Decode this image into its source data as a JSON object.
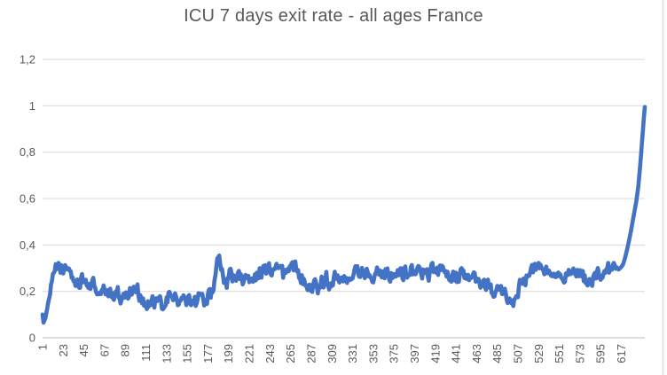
{
  "window": {
    "background": "#ffffff",
    "right_edge_color": "#d9d9d9"
  },
  "chart_data": {
    "type": "line",
    "title": "ICU 7 days exit rate - all ages France",
    "xlabel": "",
    "ylabel": "",
    "ylim": [
      0,
      1.2
    ],
    "x_range": [
      1,
      642
    ],
    "n_points": 642,
    "grid": "horizontal",
    "legend": "none",
    "decimal_separator": ",",
    "colors": {
      "series": "#4472C4",
      "grid": "#d9d9d9",
      "axis": "#bfbfbf",
      "labels": "#595959",
      "title": "#595959"
    },
    "y_ticks": [
      {
        "label": "0",
        "value": 0
      },
      {
        "label": "0,2",
        "value": 0.2
      },
      {
        "label": "0,4",
        "value": 0.4
      },
      {
        "label": "0,6",
        "value": 0.6
      },
      {
        "label": "0,8",
        "value": 0.8
      },
      {
        "label": "1",
        "value": 1
      },
      {
        "label": "1,2",
        "value": 1.2
      }
    ],
    "x_tick_step": 22,
    "x_tick_values": [
      1,
      23,
      45,
      67,
      89,
      111,
      133,
      155,
      177,
      199,
      221,
      243,
      265,
      287,
      309,
      331,
      353,
      375,
      397,
      419,
      441,
      463,
      485,
      507,
      529,
      551,
      573,
      595,
      617
    ],
    "x_tick_labels": [
      "1",
      "23",
      "45",
      "67",
      "89",
      "111",
      "133",
      "155",
      "177",
      "199",
      "221",
      "243",
      "265",
      "287",
      "309",
      "331",
      "353",
      "375",
      "397",
      "419",
      "441",
      "463",
      "485",
      "507",
      "529",
      "551",
      "573",
      "595",
      "617"
    ],
    "x_labels_rotated_deg": -90,
    "series": [
      {
        "name": "ICU 7 days exit rate",
        "color": "#4472C4",
        "stroke_width": 4.6,
        "noise_amplitude": 0.017,
        "keypoints": [
          [
            1,
            0.1
          ],
          [
            2,
            0.065
          ],
          [
            4,
            0.085
          ],
          [
            8,
            0.17
          ],
          [
            12,
            0.25
          ],
          [
            16,
            0.295
          ],
          [
            19,
            0.31
          ],
          [
            22,
            0.29
          ],
          [
            25,
            0.3
          ],
          [
            28,
            0.285
          ],
          [
            31,
            0.295
          ],
          [
            34,
            0.24
          ],
          [
            38,
            0.23
          ],
          [
            42,
            0.25
          ],
          [
            46,
            0.235
          ],
          [
            50,
            0.22
          ],
          [
            53,
            0.235
          ],
          [
            56,
            0.225
          ],
          [
            60,
            0.2
          ],
          [
            64,
            0.185
          ],
          [
            68,
            0.2
          ],
          [
            72,
            0.18
          ],
          [
            76,
            0.19
          ],
          [
            80,
            0.2
          ],
          [
            84,
            0.175
          ],
          [
            88,
            0.18
          ],
          [
            92,
            0.19
          ],
          [
            96,
            0.21
          ],
          [
            100,
            0.22
          ],
          [
            104,
            0.195
          ],
          [
            108,
            0.165
          ],
          [
            112,
            0.14
          ],
          [
            116,
            0.15
          ],
          [
            120,
            0.14
          ],
          [
            124,
            0.155
          ],
          [
            128,
            0.13
          ],
          [
            132,
            0.155
          ],
          [
            136,
            0.175
          ],
          [
            140,
            0.185
          ],
          [
            144,
            0.165
          ],
          [
            148,
            0.145
          ],
          [
            152,
            0.15
          ],
          [
            156,
            0.16
          ],
          [
            160,
            0.17
          ],
          [
            164,
            0.158
          ],
          [
            168,
            0.175
          ],
          [
            172,
            0.165
          ],
          [
            176,
            0.175
          ],
          [
            180,
            0.18
          ],
          [
            183,
            0.22
          ],
          [
            186,
            0.34
          ],
          [
            188,
            0.33
          ],
          [
            191,
            0.295
          ],
          [
            194,
            0.26
          ],
          [
            197,
            0.245
          ],
          [
            200,
            0.27
          ],
          [
            203,
            0.255
          ],
          [
            206,
            0.27
          ],
          [
            209,
            0.245
          ],
          [
            212,
            0.26
          ],
          [
            215,
            0.25
          ],
          [
            218,
            0.265
          ],
          [
            221,
            0.255
          ],
          [
            224,
            0.27
          ],
          [
            227,
            0.28
          ],
          [
            230,
            0.27
          ],
          [
            233,
            0.29
          ],
          [
            236,
            0.3
          ],
          [
            239,
            0.285
          ],
          [
            242,
            0.295
          ],
          [
            245,
            0.3
          ],
          [
            248,
            0.29
          ],
          [
            251,
            0.3
          ],
          [
            254,
            0.285
          ],
          [
            257,
            0.275
          ],
          [
            260,
            0.285
          ],
          [
            263,
            0.275
          ],
          [
            266,
            0.29
          ],
          [
            269,
            0.3
          ],
          [
            272,
            0.285
          ],
          [
            275,
            0.27
          ],
          [
            278,
            0.26
          ],
          [
            281,
            0.255
          ],
          [
            284,
            0.24
          ],
          [
            288,
            0.22
          ],
          [
            291,
            0.245
          ],
          [
            294,
            0.225
          ],
          [
            297,
            0.25
          ],
          [
            300,
            0.235
          ],
          [
            303,
            0.25
          ],
          [
            306,
            0.245
          ],
          [
            309,
            0.255
          ],
          [
            312,
            0.265
          ],
          [
            315,
            0.27
          ],
          [
            318,
            0.275
          ],
          [
            321,
            0.26
          ],
          [
            324,
            0.275
          ],
          [
            327,
            0.265
          ],
          [
            330,
            0.28
          ],
          [
            333,
            0.27
          ],
          [
            336,
            0.285
          ],
          [
            339,
            0.267
          ],
          [
            342,
            0.277
          ],
          [
            345,
            0.285
          ],
          [
            348,
            0.267
          ],
          [
            351,
            0.277
          ],
          [
            354,
            0.29
          ],
          [
            357,
            0.31
          ],
          [
            360,
            0.29
          ],
          [
            363,
            0.277
          ],
          [
            366,
            0.285
          ],
          [
            369,
            0.272
          ],
          [
            372,
            0.28
          ],
          [
            375,
            0.285
          ],
          [
            378,
            0.275
          ],
          [
            381,
            0.29
          ],
          [
            384,
            0.278
          ],
          [
            387,
            0.292
          ],
          [
            390,
            0.28
          ],
          [
            393,
            0.295
          ],
          [
            396,
            0.285
          ],
          [
            399,
            0.275
          ],
          [
            402,
            0.295
          ],
          [
            405,
            0.285
          ],
          [
            408,
            0.297
          ],
          [
            411,
            0.284
          ],
          [
            414,
            0.275
          ],
          [
            417,
            0.29
          ],
          [
            420,
            0.277
          ],
          [
            423,
            0.288
          ],
          [
            426,
            0.272
          ],
          [
            429,
            0.283
          ],
          [
            432,
            0.268
          ],
          [
            435,
            0.278
          ],
          [
            438,
            0.26
          ],
          [
            441,
            0.272
          ],
          [
            444,
            0.256
          ],
          [
            447,
            0.266
          ],
          [
            450,
            0.248
          ],
          [
            453,
            0.26
          ],
          [
            456,
            0.242
          ],
          [
            459,
            0.252
          ],
          [
            462,
            0.235
          ],
          [
            465,
            0.245
          ],
          [
            468,
            0.23
          ],
          [
            471,
            0.22
          ],
          [
            474,
            0.232
          ],
          [
            477,
            0.215
          ],
          [
            480,
            0.21
          ],
          [
            483,
            0.2
          ],
          [
            486,
            0.19
          ],
          [
            489,
            0.183
          ],
          [
            492,
            0.186
          ],
          [
            495,
            0.17
          ],
          [
            498,
            0.19
          ],
          [
            501,
            0.163
          ],
          [
            504,
            0.185
          ],
          [
            507,
            0.21
          ],
          [
            510,
            0.228
          ],
          [
            513,
            0.243
          ],
          [
            516,
            0.258
          ],
          [
            519,
            0.272
          ],
          [
            522,
            0.288
          ],
          [
            525,
            0.3
          ],
          [
            528,
            0.293
          ],
          [
            531,
            0.312
          ],
          [
            534,
            0.3
          ],
          [
            537,
            0.292
          ],
          [
            540,
            0.3
          ],
          [
            543,
            0.29
          ],
          [
            546,
            0.298
          ],
          [
            549,
            0.288
          ],
          [
            552,
            0.298
          ],
          [
            555,
            0.285
          ],
          [
            558,
            0.277
          ],
          [
            561,
            0.287
          ],
          [
            564,
            0.272
          ],
          [
            567,
            0.263
          ],
          [
            570,
            0.273
          ],
          [
            573,
            0.258
          ],
          [
            576,
            0.268
          ],
          [
            579,
            0.252
          ],
          [
            582,
            0.262
          ],
          [
            585,
            0.248
          ],
          [
            588,
            0.252
          ],
          [
            591,
            0.263
          ],
          [
            594,
            0.252
          ],
          [
            597,
            0.262
          ],
          [
            600,
            0.272
          ],
          [
            603,
            0.283
          ],
          [
            606,
            0.295
          ],
          [
            609,
            0.305
          ],
          [
            612,
            0.295
          ],
          [
            615,
            0.298
          ],
          [
            617,
            0.305
          ],
          [
            619,
            0.318
          ],
          [
            621,
            0.345
          ],
          [
            623,
            0.378
          ],
          [
            625,
            0.415
          ],
          [
            627,
            0.455
          ],
          [
            629,
            0.5
          ],
          [
            631,
            0.545
          ],
          [
            633,
            0.59
          ],
          [
            635,
            0.65
          ],
          [
            636,
            0.695
          ],
          [
            637,
            0.74
          ],
          [
            638,
            0.79
          ],
          [
            639,
            0.845
          ],
          [
            640,
            0.895
          ],
          [
            641,
            0.95
          ],
          [
            642,
            0.995
          ]
        ]
      }
    ]
  }
}
